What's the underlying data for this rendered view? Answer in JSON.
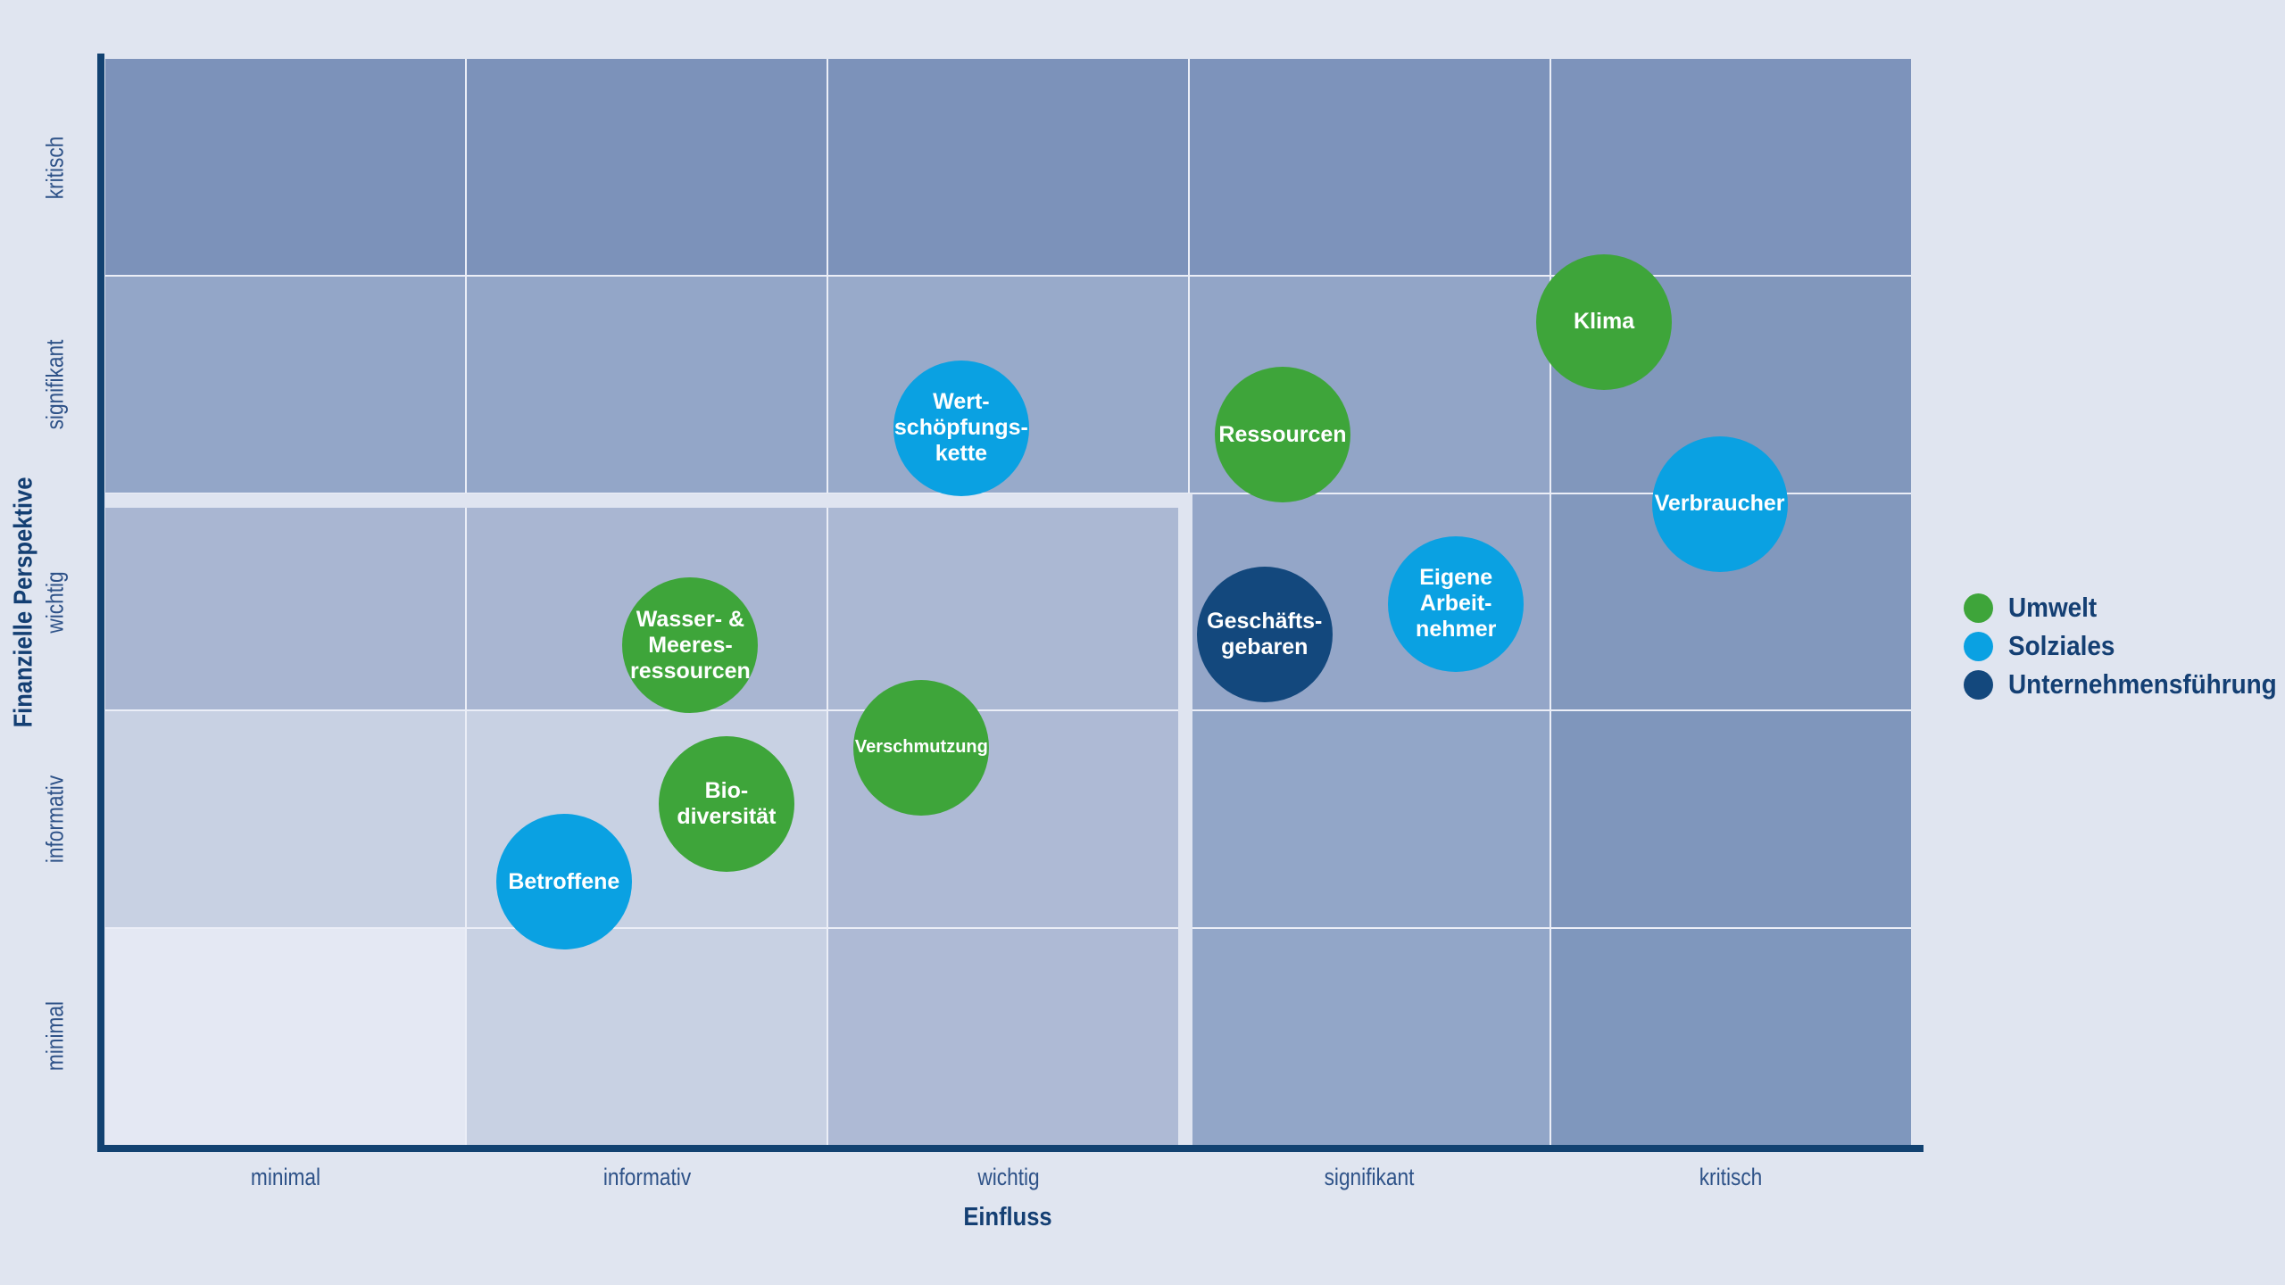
{
  "page": {
    "background_color": "#e0e5f0"
  },
  "chart_data": {
    "type": "scatter",
    "subtype": "bubble-materiality-matrix",
    "title": "",
    "xlabel": "Einfluss",
    "ylabel": "Finanzielle Perspektive",
    "x_ticks": [
      "minimal",
      "informativ",
      "wichtig",
      "signifikant",
      "kritisch"
    ],
    "y_ticks_bottom_to_top": [
      "minimal",
      "informativ",
      "wichtig",
      "signifikant",
      "kritisch"
    ],
    "x_range": [
      0,
      5
    ],
    "y_range": [
      0,
      5
    ],
    "grid_on": true,
    "legend": {
      "position": "right",
      "items": [
        {
          "label": "Umwelt",
          "color": "#3ea53a"
        },
        {
          "label": "Solziales",
          "color": "#0aa1e2"
        },
        {
          "label": "Unternehmensführung",
          "color": "#13487d"
        }
      ]
    },
    "threshold": {
      "description": "Thick light step line separating the material upper-right region (above 'wichtig' row for columns minimal–wichtig, right of 'wichtig' column below)",
      "horizontal_at_y": 3.0,
      "vertical_at_x": 3.0
    },
    "points": [
      {
        "slug": "klima",
        "label_lines": [
          "Klima"
        ],
        "category": "Umwelt",
        "color": "#3ea53a",
        "x": 4.15,
        "y": 3.79,
        "radius_px": 76,
        "small_text": false
      },
      {
        "slug": "verbraucher",
        "label_lines": [
          "Verbraucher"
        ],
        "category": "Solziales",
        "color": "#0aa1e2",
        "x": 4.47,
        "y": 2.95,
        "radius_px": 76,
        "small_text": false
      },
      {
        "slug": "wertschoepfungskette",
        "label_lines": [
          "Wert-",
          "schöpfungs-",
          "kette"
        ],
        "category": "Solziales",
        "color": "#0aa1e2",
        "x": 2.37,
        "y": 3.3,
        "radius_px": 76,
        "small_text": false
      },
      {
        "slug": "ressourcen",
        "label_lines": [
          "Ressourcen"
        ],
        "category": "Umwelt",
        "color": "#3ea53a",
        "x": 3.26,
        "y": 3.27,
        "radius_px": 76,
        "small_text": false
      },
      {
        "slug": "eigene-arbeitnehmer",
        "label_lines": [
          "Eigene",
          "Arbeit-",
          "nehmer"
        ],
        "category": "Solziales",
        "color": "#0aa1e2",
        "x": 3.74,
        "y": 2.49,
        "radius_px": 76,
        "small_text": false
      },
      {
        "slug": "geschaeftsgebaren",
        "label_lines": [
          "Geschäfts-",
          "gebaren"
        ],
        "category": "Unternehmensführung",
        "color": "#13487d",
        "x": 3.21,
        "y": 2.35,
        "radius_px": 76,
        "small_text": false
      },
      {
        "slug": "wasser-meeresressourcen",
        "label_lines": [
          "Wasser- &",
          "Meeres-",
          "ressourcen"
        ],
        "category": "Umwelt",
        "color": "#3ea53a",
        "x": 1.62,
        "y": 2.3,
        "radius_px": 76,
        "small_text": false
      },
      {
        "slug": "verschmutzung",
        "label_lines": [
          "Verschmutzung"
        ],
        "category": "Umwelt",
        "color": "#3ea53a",
        "x": 2.26,
        "y": 1.83,
        "radius_px": 76,
        "small_text": true
      },
      {
        "slug": "biodiversitaet",
        "label_lines": [
          "Bio-",
          "diversität"
        ],
        "category": "Umwelt",
        "color": "#3ea53a",
        "x": 1.72,
        "y": 1.57,
        "radius_px": 76,
        "small_text": false
      },
      {
        "slug": "betroffene",
        "label_lines": [
          "Betroffene"
        ],
        "category": "Solziales",
        "color": "#0aa1e2",
        "x": 1.27,
        "y": 1.21,
        "radius_px": 76,
        "small_text": false
      }
    ],
    "grid": {
      "rows_top_to_bottom": [
        "kritisch",
        "signifikant",
        "wichtig",
        "informativ",
        "minimal"
      ],
      "cols_left_to_right": [
        "minimal",
        "informativ",
        "wichtig",
        "signifikant",
        "kritisch"
      ],
      "cell_colors_top_to_bottom": [
        [
          "#7c92ba",
          "#7c92ba",
          "#7c92ba",
          "#7d93bb",
          "#7d93bb"
        ],
        [
          "#93a6c8",
          "#93a6c8",
          "#98aaca",
          "#92a5c7",
          "#8197bc"
        ],
        [
          "#a9b6d2",
          "#a9b6d2",
          "#abb8d3",
          "#94a6c8",
          "#8298bd"
        ],
        [
          "#c8d1e3",
          "#c8d1e3",
          "#aebad5",
          "#92a6c8",
          "#7f96bc"
        ],
        [
          "#e4e8f3",
          "#c8d1e3",
          "#aebad5",
          "#92a6c8",
          "#7f97bd"
        ]
      ],
      "gridline_color": "#ebeef7",
      "threshold_line_color": "#dfe4f0",
      "axis_line_color": "#124271",
      "tick_label_color": "#2e5288",
      "axis_title_color": "#143f73"
    }
  }
}
